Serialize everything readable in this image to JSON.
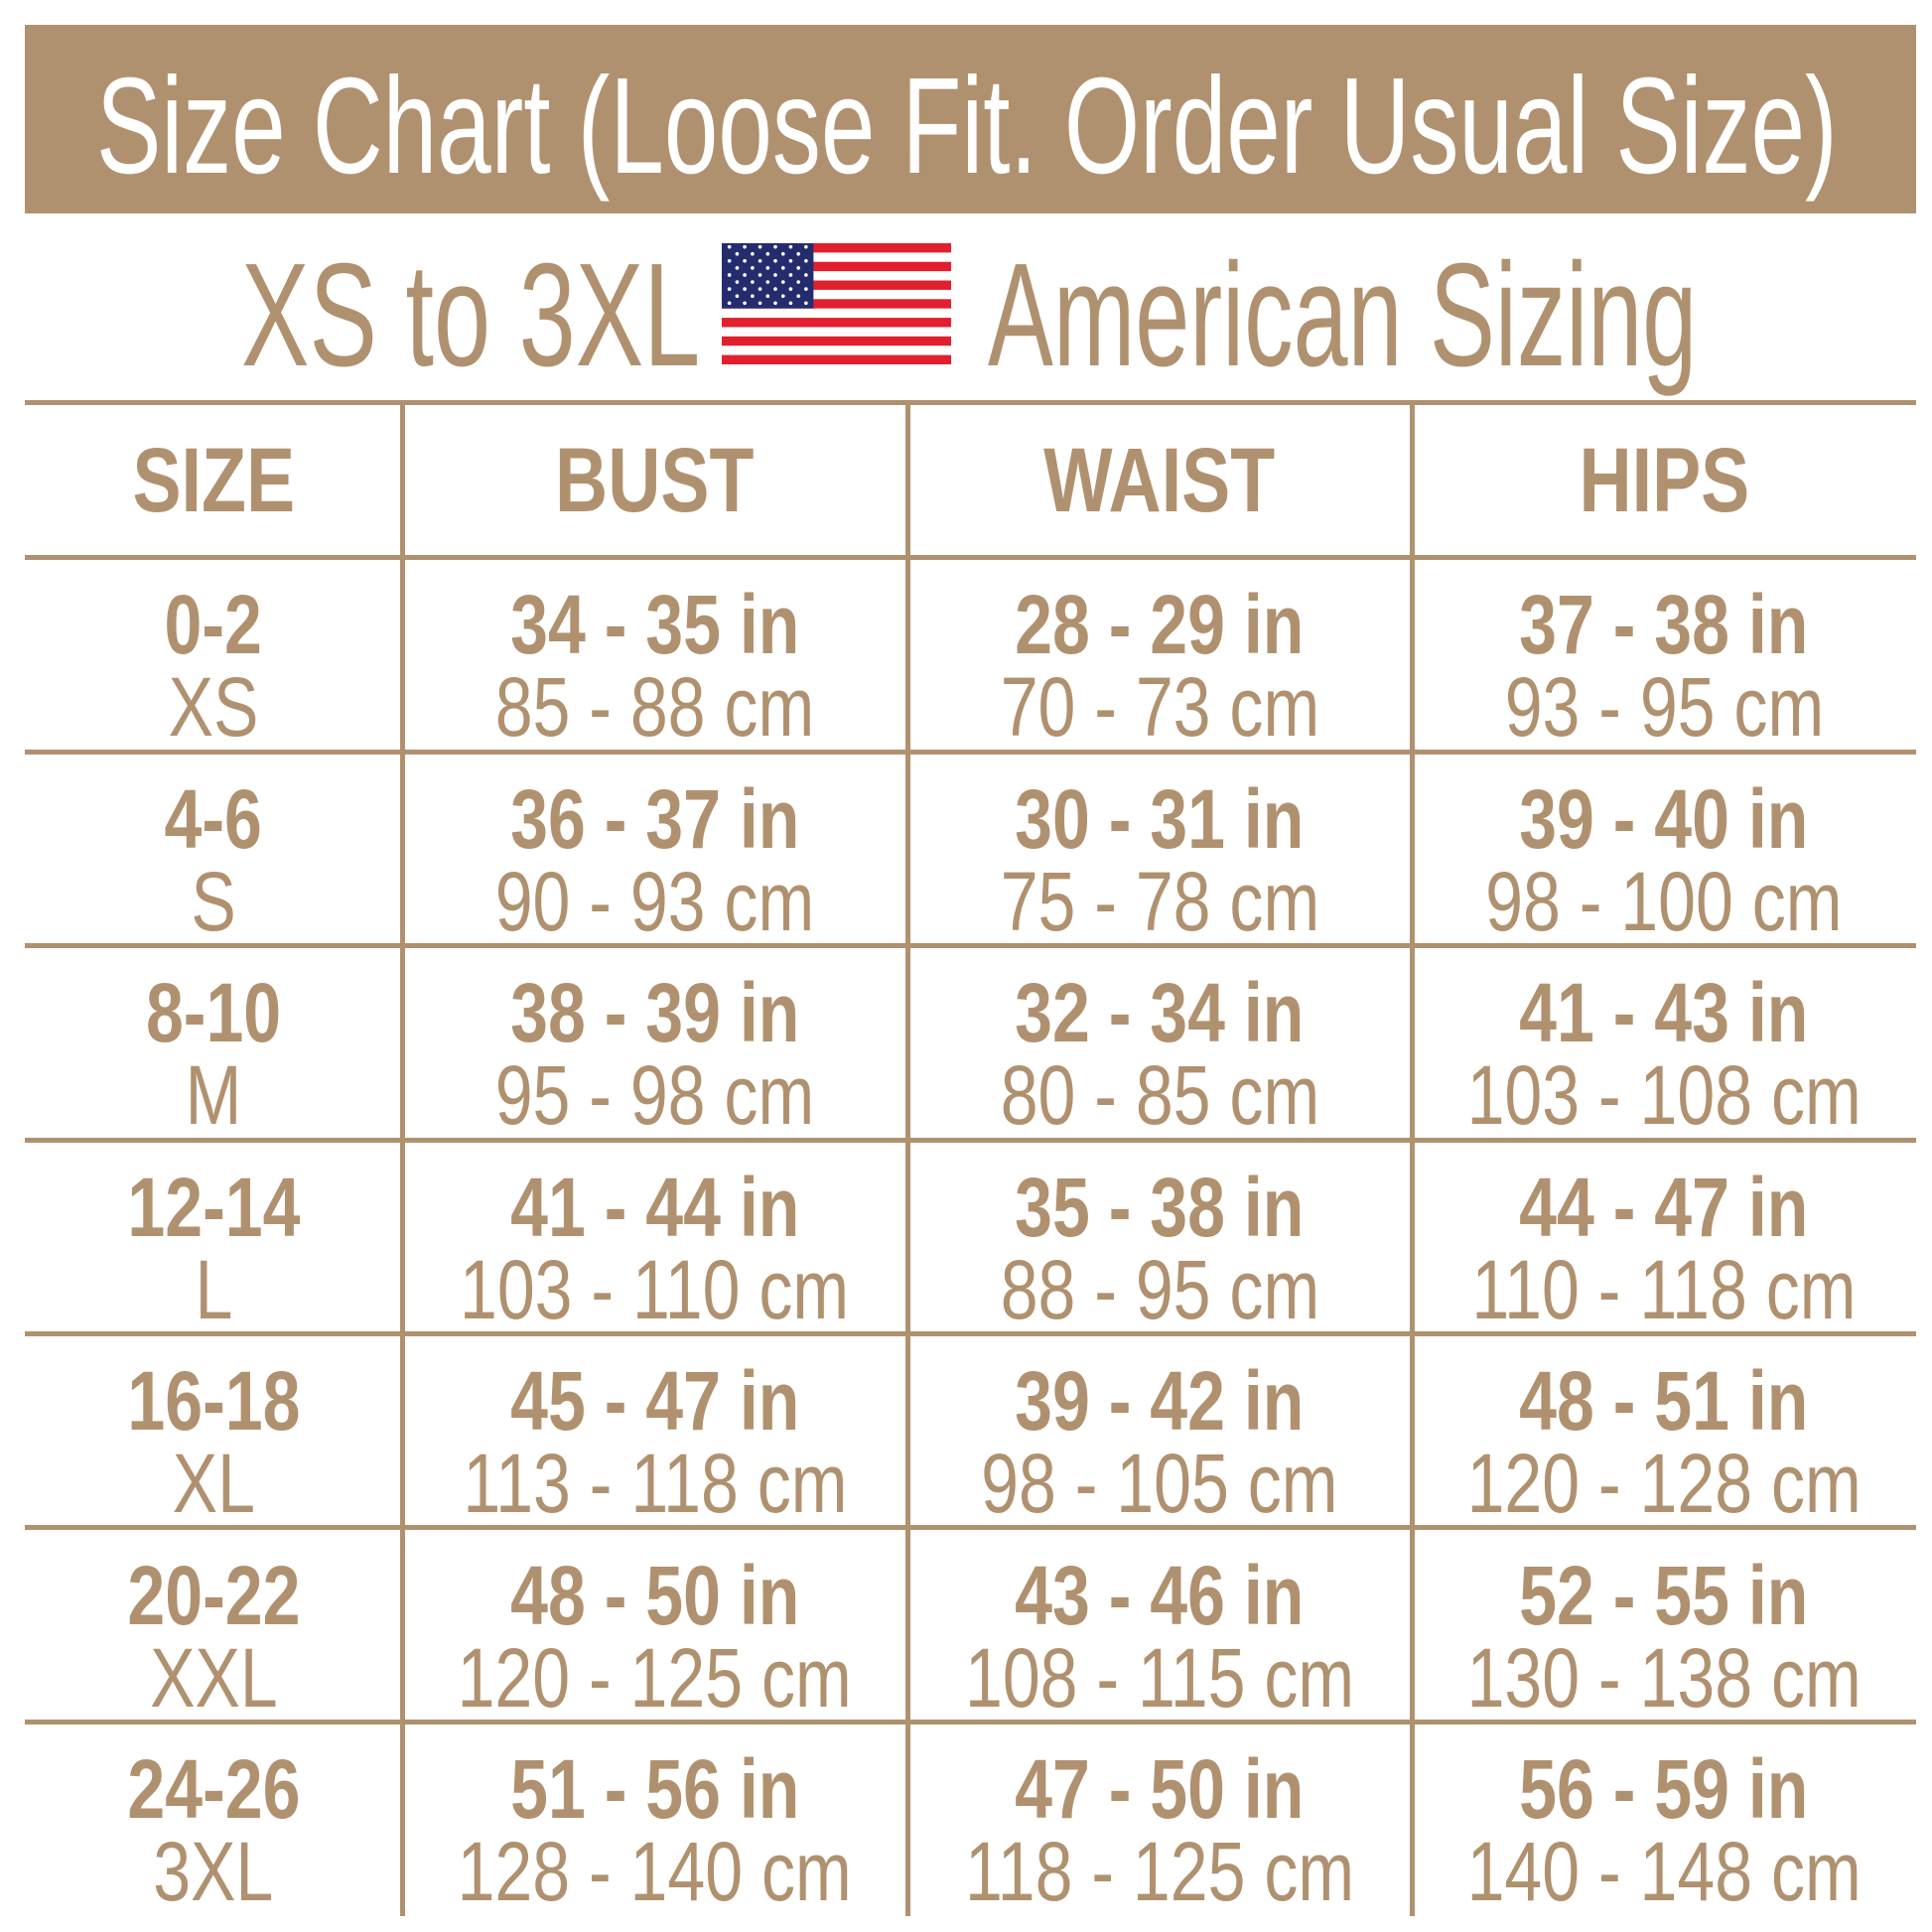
{
  "title": "Size Chart (Loose Fit. Order Usual Size)",
  "subtitle": {
    "left": "XS to 3XL",
    "right": "American Sizing",
    "flag_icon": "us-flag-icon"
  },
  "colors": {
    "accent": "#b0916f",
    "flag_red": "#e21f2e",
    "flag_blue": "#252c6e",
    "white": "#ffffff"
  },
  "table": {
    "headers": [
      "SIZE",
      "BUST",
      "WAIST",
      "HIPS"
    ],
    "rows": [
      {
        "size": "0-2",
        "label": "XS",
        "bust_in": "34 - 35 in",
        "bust_cm": "85 - 88 cm",
        "waist_in": "28 - 29 in",
        "waist_cm": "70 - 73 cm",
        "hips_in": "37 - 38 in",
        "hips_cm": "93 - 95 cm"
      },
      {
        "size": "4-6",
        "label": "S",
        "bust_in": "36 - 37 in",
        "bust_cm": "90 - 93 cm",
        "waist_in": "30 - 31 in",
        "waist_cm": "75 - 78 cm",
        "hips_in": "39 - 40 in",
        "hips_cm": "98 - 100 cm"
      },
      {
        "size": "8-10",
        "label": "M",
        "bust_in": "38 - 39 in",
        "bust_cm": "95 - 98 cm",
        "waist_in": "32 - 34 in",
        "waist_cm": "80 - 85 cm",
        "hips_in": "41 - 43 in",
        "hips_cm": "103 - 108 cm"
      },
      {
        "size": "12-14",
        "label": "L",
        "bust_in": "41 - 44 in",
        "bust_cm": "103 - 110 cm",
        "waist_in": "35 - 38 in",
        "waist_cm": "88 - 95 cm",
        "hips_in": "44 - 47 in",
        "hips_cm": "110 - 118 cm"
      },
      {
        "size": "16-18",
        "label": "XL",
        "bust_in": "45 - 47 in",
        "bust_cm": "113 - 118 cm",
        "waist_in": "39 - 42 in",
        "waist_cm": "98 - 105 cm",
        "hips_in": "48 - 51 in",
        "hips_cm": "120 - 128 cm"
      },
      {
        "size": "20-22",
        "label": "XXL",
        "bust_in": "48 - 50 in",
        "bust_cm": "120 - 125 cm",
        "waist_in": "43 - 46 in",
        "waist_cm": "108 - 115 cm",
        "hips_in": "52 - 55 in",
        "hips_cm": "130 - 138 cm"
      },
      {
        "size": "24-26",
        "label": "3XL",
        "bust_in": "51 - 56 in",
        "bust_cm": "128 - 140 cm",
        "waist_in": "47 - 50 in",
        "waist_cm": "118 - 125 cm",
        "hips_in": "56 - 59 in",
        "hips_cm": "140 - 148 cm"
      }
    ]
  }
}
